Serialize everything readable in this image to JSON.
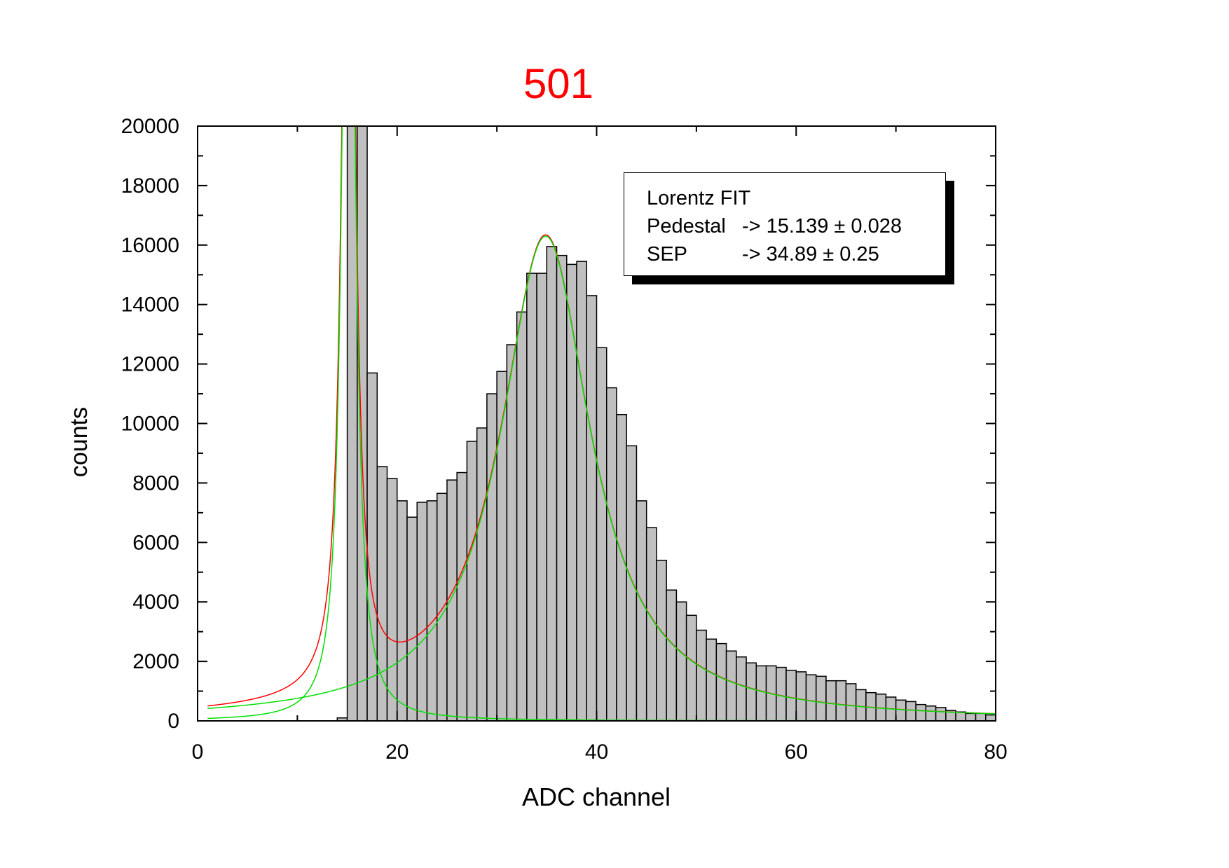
{
  "chart_data": {
    "type": "bar",
    "title": "501",
    "xlabel": "ADC channel",
    "ylabel": "counts",
    "xlim": [
      0,
      80
    ],
    "ylim": [
      0,
      20000
    ],
    "x_ticks": [
      0,
      20,
      40,
      60,
      80
    ],
    "y_ticks": [
      0,
      2000,
      4000,
      6000,
      8000,
      10000,
      12000,
      14000,
      16000,
      18000,
      20000
    ],
    "x_tick_labels": [
      "0",
      "20",
      "40",
      "60",
      "80"
    ],
    "y_tick_labels": [
      "0",
      "2000",
      "4000",
      "6000",
      "8000",
      "10000",
      "12000",
      "14000",
      "16000",
      "18000",
      "20000"
    ],
    "grid": false,
    "bar_color": "#c0c0c0",
    "bar_edge_color": "#000000",
    "histogram": {
      "bin_width": 1,
      "bin_starts": [
        14,
        15,
        16,
        17,
        18,
        19,
        20,
        21,
        22,
        23,
        24,
        25,
        26,
        27,
        28,
        29,
        30,
        31,
        32,
        33,
        34,
        35,
        36,
        37,
        38,
        39,
        40,
        41,
        42,
        43,
        44,
        45,
        46,
        47,
        48,
        49,
        50,
        51,
        52,
        53,
        54,
        55,
        56,
        57,
        58,
        59,
        60,
        61,
        62,
        63,
        64,
        65,
        66,
        67,
        68,
        69,
        70,
        71,
        72,
        73,
        74,
        75,
        76,
        77,
        78,
        79
      ],
      "counts": [
        100,
        20000,
        20000,
        11700,
        8550,
        8150,
        7400,
        6850,
        7350,
        7400,
        7650,
        8100,
        8350,
        9400,
        9850,
        11000,
        11750,
        12650,
        13750,
        15050,
        15050,
        15950,
        15650,
        15350,
        15450,
        14300,
        12550,
        11200,
        10300,
        9250,
        7400,
        6500,
        5400,
        4400,
        4000,
        3550,
        3050,
        2750,
        2600,
        2350,
        2150,
        1950,
        1850,
        1850,
        1800,
        1700,
        1650,
        1550,
        1500,
        1350,
        1350,
        1250,
        1050,
        950,
        900,
        800,
        700,
        650,
        550,
        500,
        450,
        350,
        300,
        250,
        250,
        200
      ]
    },
    "fits": [
      {
        "color": "#ff0000",
        "components": [
          {
            "x0": 15.139,
            "w": 1.3,
            "A": 40000
          },
          {
            "x0": 34.89,
            "w": 11.0,
            "A": 16300
          }
        ]
      },
      {
        "color": "#00e000",
        "components": [
          {
            "x0": 34.89,
            "w": 11.0,
            "A": 16300
          }
        ]
      },
      {
        "color": "#00e000",
        "components": [
          {
            "x0": 15.139,
            "w": 1.3,
            "A": 40000
          }
        ]
      }
    ],
    "legend": {
      "title": "Lorentz FIT",
      "placement": "top-right",
      "rows": [
        {
          "name": "Pedestal",
          "value": "-> 15.139 ± 0.028"
        },
        {
          "name": "SEP",
          "value": "-> 34.89 ± 0.25"
        }
      ]
    },
    "title_color": "#ff0000"
  }
}
